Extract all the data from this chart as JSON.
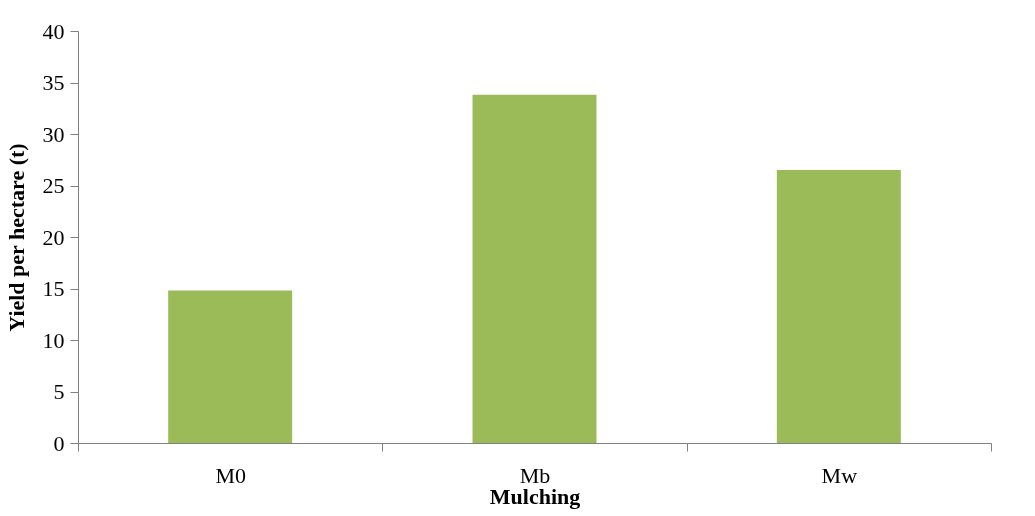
{
  "chart_data": {
    "type": "bar",
    "xlabel": "Mulching",
    "ylabel": "Yield per hectare (t)",
    "categories": [
      "M0",
      "Mb",
      "Mw"
    ],
    "values": [
      14.8,
      33.8,
      26.5
    ],
    "color": "#9bbb59",
    "ylim": [
      0,
      40
    ],
    "yticks": [
      0,
      5,
      10,
      15,
      20,
      25,
      30,
      35,
      40
    ],
    "grid": false
  }
}
